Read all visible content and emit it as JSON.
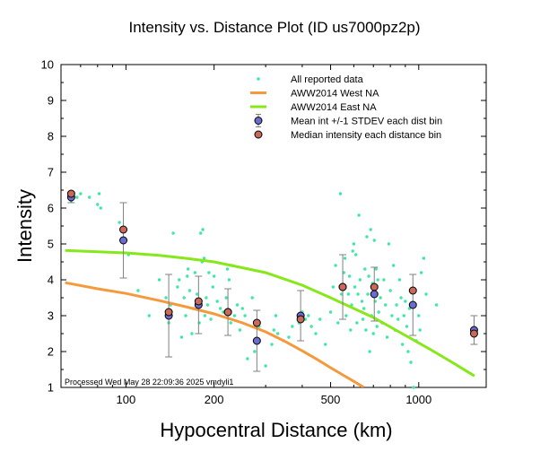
{
  "chart_data": {
    "type": "scatter",
    "title": "Intensity vs. Distance Plot (ID us7000pz2p)",
    "xlabel": "Hypocentral Distance (km)",
    "ylabel": "Intensity",
    "xscale": "log",
    "xlim": [
      60,
      1700
    ],
    "ylim": [
      1,
      10
    ],
    "x_ticks": [
      100,
      200,
      500,
      1000
    ],
    "y_ticks": [
      1,
      2,
      3,
      4,
      5,
      6,
      7,
      8,
      9,
      10
    ],
    "footer": "Processed Wed May 28 22:09:36 2025 vmdyli1",
    "colors": {
      "reported": "#3fe8a6",
      "west": "#f59a3c",
      "east": "#86e81a",
      "mean": "#6c6cd0",
      "median": "#c8695c",
      "errorbar": "#808080"
    },
    "legend": [
      {
        "label": "All reported data",
        "kind": "dot"
      },
      {
        "label": "AWW2014 West NA",
        "kind": "west"
      },
      {
        "label": "AWW2014 East NA",
        "kind": "east"
      },
      {
        "label": "Mean int +/-1 STDEV each dist bin",
        "kind": "mean"
      },
      {
        "label": "Median intensity each distance bin",
        "kind": "median"
      }
    ],
    "series": [
      {
        "name": "AWW2014 West NA",
        "x": [
          62,
          80,
          100,
          130,
          160,
          200,
          250,
          300,
          350,
          400,
          450,
          500,
          550,
          600,
          650
        ],
        "y": [
          3.92,
          3.75,
          3.62,
          3.42,
          3.25,
          3.05,
          2.8,
          2.55,
          2.28,
          2.02,
          1.78,
          1.55,
          1.35,
          1.17,
          1.0
        ]
      },
      {
        "name": "AWW2014 East NA",
        "x": [
          62,
          80,
          100,
          130,
          160,
          200,
          300,
          400,
          500,
          700,
          900,
          1100,
          1300,
          1550
        ],
        "y": [
          4.82,
          4.78,
          4.75,
          4.68,
          4.6,
          4.5,
          4.2,
          3.85,
          3.5,
          2.95,
          2.45,
          2.05,
          1.7,
          1.32
        ]
      }
    ],
    "mean_bins": [
      {
        "x": 65,
        "y": 6.3,
        "sd": 0.15
      },
      {
        "x": 98,
        "y": 5.1,
        "sd": 1.05
      },
      {
        "x": 140,
        "y": 3.0,
        "sd": 1.15
      },
      {
        "x": 177,
        "y": 3.3,
        "sd": 0.8
      },
      {
        "x": 223,
        "y": 3.1,
        "sd": 0.65
      },
      {
        "x": 280,
        "y": 2.3,
        "sd": 0.85
      },
      {
        "x": 395,
        "y": 3.0,
        "sd": 0.7
      },
      {
        "x": 550,
        "y": 3.8,
        "sd": 0.9
      },
      {
        "x": 705,
        "y": 3.6,
        "sd": 0.75
      },
      {
        "x": 955,
        "y": 3.3,
        "sd": 0.85
      },
      {
        "x": 1545,
        "y": 2.6,
        "sd": 0.4
      }
    ],
    "median_bins": [
      {
        "x": 65,
        "y": 6.4
      },
      {
        "x": 98,
        "y": 5.4
      },
      {
        "x": 140,
        "y": 3.1
      },
      {
        "x": 177,
        "y": 3.4
      },
      {
        "x": 223,
        "y": 3.1
      },
      {
        "x": 280,
        "y": 2.8
      },
      {
        "x": 395,
        "y": 2.9
      },
      {
        "x": 550,
        "y": 3.8
      },
      {
        "x": 705,
        "y": 3.8
      },
      {
        "x": 955,
        "y": 3.7
      },
      {
        "x": 1545,
        "y": 2.5
      }
    ],
    "reported": [
      [
        65,
        6.2
      ],
      [
        68,
        6.3
      ],
      [
        70,
        6.4
      ],
      [
        75,
        6.3
      ],
      [
        80,
        6.1
      ],
      [
        81,
        6.4
      ],
      [
        82,
        6.0
      ],
      [
        95,
        5.6
      ],
      [
        100,
        5.4
      ],
      [
        102,
        4.7
      ],
      [
        110,
        3.7
      ],
      [
        120,
        3.0
      ],
      [
        130,
        4.0
      ],
      [
        137,
        3.5
      ],
      [
        138,
        3.1
      ],
      [
        140,
        2.8
      ],
      [
        142,
        3.3
      ],
      [
        145,
        5.3
      ],
      [
        150,
        3.8
      ],
      [
        152,
        4.0
      ],
      [
        155,
        2.4
      ],
      [
        158,
        3.5
      ],
      [
        160,
        3.0
      ],
      [
        162,
        4.1
      ],
      [
        163,
        4.3
      ],
      [
        165,
        3.7
      ],
      [
        168,
        2.5
      ],
      [
        170,
        3.2
      ],
      [
        172,
        4.2
      ],
      [
        175,
        3.6
      ],
      [
        178,
        2.8
      ],
      [
        180,
        5.3
      ],
      [
        182,
        4.5
      ],
      [
        183,
        5.4
      ],
      [
        185,
        4.6
      ],
      [
        186,
        3.0
      ],
      [
        188,
        3.5
      ],
      [
        190,
        3.3
      ],
      [
        192,
        4.2
      ],
      [
        195,
        2.9
      ],
      [
        198,
        3.8
      ],
      [
        200,
        4.1
      ],
      [
        205,
        3.4
      ],
      [
        210,
        3.2
      ],
      [
        215,
        3.1
      ],
      [
        220,
        3.5
      ],
      [
        222,
        4.3
      ],
      [
        225,
        4.0
      ],
      [
        228,
        2.8
      ],
      [
        230,
        4.4
      ],
      [
        235,
        3.0
      ],
      [
        240,
        3.3
      ],
      [
        245,
        2.6
      ],
      [
        250,
        3.2
      ],
      [
        255,
        3.0
      ],
      [
        260,
        1.8
      ],
      [
        270,
        3.5
      ],
      [
        275,
        2.0
      ],
      [
        285,
        2.7
      ],
      [
        300,
        1.6
      ],
      [
        315,
        2.2
      ],
      [
        320,
        2.6
      ],
      [
        325,
        3.0
      ],
      [
        330,
        2.5
      ],
      [
        345,
        2.3
      ],
      [
        360,
        2.4
      ],
      [
        370,
        2.7
      ],
      [
        390,
        2.8
      ],
      [
        400,
        3.1
      ],
      [
        410,
        2.9
      ],
      [
        420,
        3.0
      ],
      [
        430,
        2.7
      ],
      [
        445,
        2.5
      ],
      [
        460,
        2.9
      ],
      [
        480,
        2.2
      ],
      [
        500,
        3.1
      ],
      [
        510,
        3.8
      ],
      [
        520,
        4.4
      ],
      [
        530,
        2.8
      ],
      [
        540,
        6.4
      ],
      [
        545,
        3.6
      ],
      [
        555,
        4.2
      ],
      [
        560,
        4.6
      ],
      [
        565,
        3.0
      ],
      [
        575,
        3.6
      ],
      [
        580,
        4.1
      ],
      [
        585,
        2.6
      ],
      [
        590,
        3.3
      ],
      [
        595,
        4.8
      ],
      [
        600,
        5.0
      ],
      [
        605,
        3.8
      ],
      [
        610,
        4.7
      ],
      [
        615,
        2.8
      ],
      [
        620,
        3.6
      ],
      [
        625,
        5.8
      ],
      [
        630,
        4.0
      ],
      [
        640,
        3.4
      ],
      [
        645,
        2.9
      ],
      [
        650,
        3.2
      ],
      [
        655,
        4.3
      ],
      [
        660,
        2.6
      ],
      [
        665,
        5.2
      ],
      [
        670,
        3.6
      ],
      [
        675,
        4.1
      ],
      [
        680,
        2.0
      ],
      [
        685,
        5.4
      ],
      [
        690,
        3.0
      ],
      [
        695,
        3.9
      ],
      [
        700,
        2.5
      ],
      [
        705,
        5.1
      ],
      [
        710,
        3.4
      ],
      [
        715,
        4.3
      ],
      [
        720,
        2.7
      ],
      [
        725,
        4.0
      ],
      [
        730,
        3.1
      ],
      [
        740,
        3.5
      ],
      [
        750,
        2.8
      ],
      [
        760,
        4.0
      ],
      [
        770,
        3.3
      ],
      [
        780,
        2.4
      ],
      [
        790,
        5.0
      ],
      [
        800,
        3.7
      ],
      [
        810,
        3.0
      ],
      [
        820,
        4.4
      ],
      [
        830,
        2.6
      ],
      [
        840,
        3.3
      ],
      [
        850,
        2.9
      ],
      [
        860,
        4.0
      ],
      [
        870,
        3.5
      ],
      [
        880,
        2.2
      ],
      [
        890,
        3.0
      ],
      [
        900,
        3.4
      ],
      [
        910,
        2.7
      ],
      [
        920,
        2.0
      ],
      [
        930,
        3.2
      ],
      [
        940,
        1.7
      ],
      [
        960,
        1.0
      ],
      [
        980,
        2.3
      ],
      [
        1000,
        3.0
      ],
      [
        1010,
        2.6
      ],
      [
        1020,
        4.2
      ],
      [
        1040,
        4.6
      ],
      [
        1060,
        3.6
      ],
      [
        1150,
        3.3
      ]
    ]
  },
  "chart_texts": {
    "title": "Intensity vs. Distance Plot (ID us7000pz2p)",
    "xlabel": "Hypocentral Distance (km)",
    "ylabel": "Intensity",
    "footer": "Processed Wed May 28 22:09:36 2025 vmdyli1"
  }
}
